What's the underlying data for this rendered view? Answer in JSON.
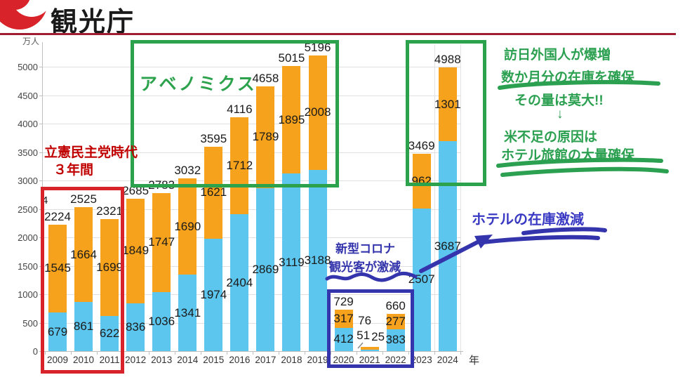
{
  "header": {
    "agency_name": "観光庁"
  },
  "axis": {
    "y_unit": "万人",
    "x_unit": "年",
    "y_ticks": [
      "0",
      "500",
      "1000",
      "1500",
      "2000",
      "2500",
      "3000",
      "3500",
      "4000",
      "4500",
      "5000"
    ]
  },
  "chart_data": {
    "type": "bar",
    "stacked": true,
    "title": "",
    "xlabel": "年",
    "ylabel": "万人",
    "ylim": [
      0,
      5000
    ],
    "grid": true,
    "legend": "none",
    "categories": [
      "2009",
      "2010",
      "2011",
      "2012",
      "2013",
      "2014",
      "2015",
      "2016",
      "2017",
      "2018",
      "2019",
      "2020",
      "2021",
      "2022",
      "2023",
      "2024"
    ],
    "series": [
      {
        "name": "blue-bottom-segment",
        "color": "#5cc6ee",
        "values": [
          679,
          861,
          622,
          836,
          1036,
          1341,
          1974,
          2404,
          2869,
          3119,
          3188,
          412,
          25,
          383,
          2507,
          3687
        ]
      },
      {
        "name": "orange-top-segment",
        "color": "#f6a21c",
        "values": [
          1545,
          1664,
          1699,
          1849,
          1747,
          1690,
          1621,
          1712,
          1789,
          1895,
          2008,
          317,
          51,
          277,
          962,
          1301
        ]
      }
    ],
    "totals": [
      2224,
      2525,
      2321,
      2685,
      2783,
      3032,
      3595,
      4116,
      4658,
      5015,
      5196,
      729,
      76,
      660,
      3469,
      4988
    ]
  },
  "annotations": {
    "red_note": {
      "line1": "立憲民主党時代",
      "line2": "３年間"
    },
    "abenomics": "アベノミクス",
    "covid": {
      "line1": "新型コロナ",
      "line2": "観光客が激減"
    },
    "hotel_drop": "ホテルの在庫激減",
    "green_note": {
      "lines": [
        "訪日外国人が爆増",
        "数か月分の在庫を確保",
        "その量は莫大!!",
        "↓",
        "米不足の原因は",
        "ホテル旅館の大量確保"
      ]
    },
    "stray_char": "4"
  },
  "colors": {
    "bar_blue": "#5cc6ee",
    "bar_orange": "#f6a21c",
    "box_red": "#d8232a",
    "box_green": "#2ca24c",
    "box_blue": "#3434ac",
    "text_red": "#c00000",
    "text_green": "#2ba050",
    "text_blue": "#3434ac",
    "header_rule": "#a01c30",
    "logo_red": "#d8232a"
  }
}
